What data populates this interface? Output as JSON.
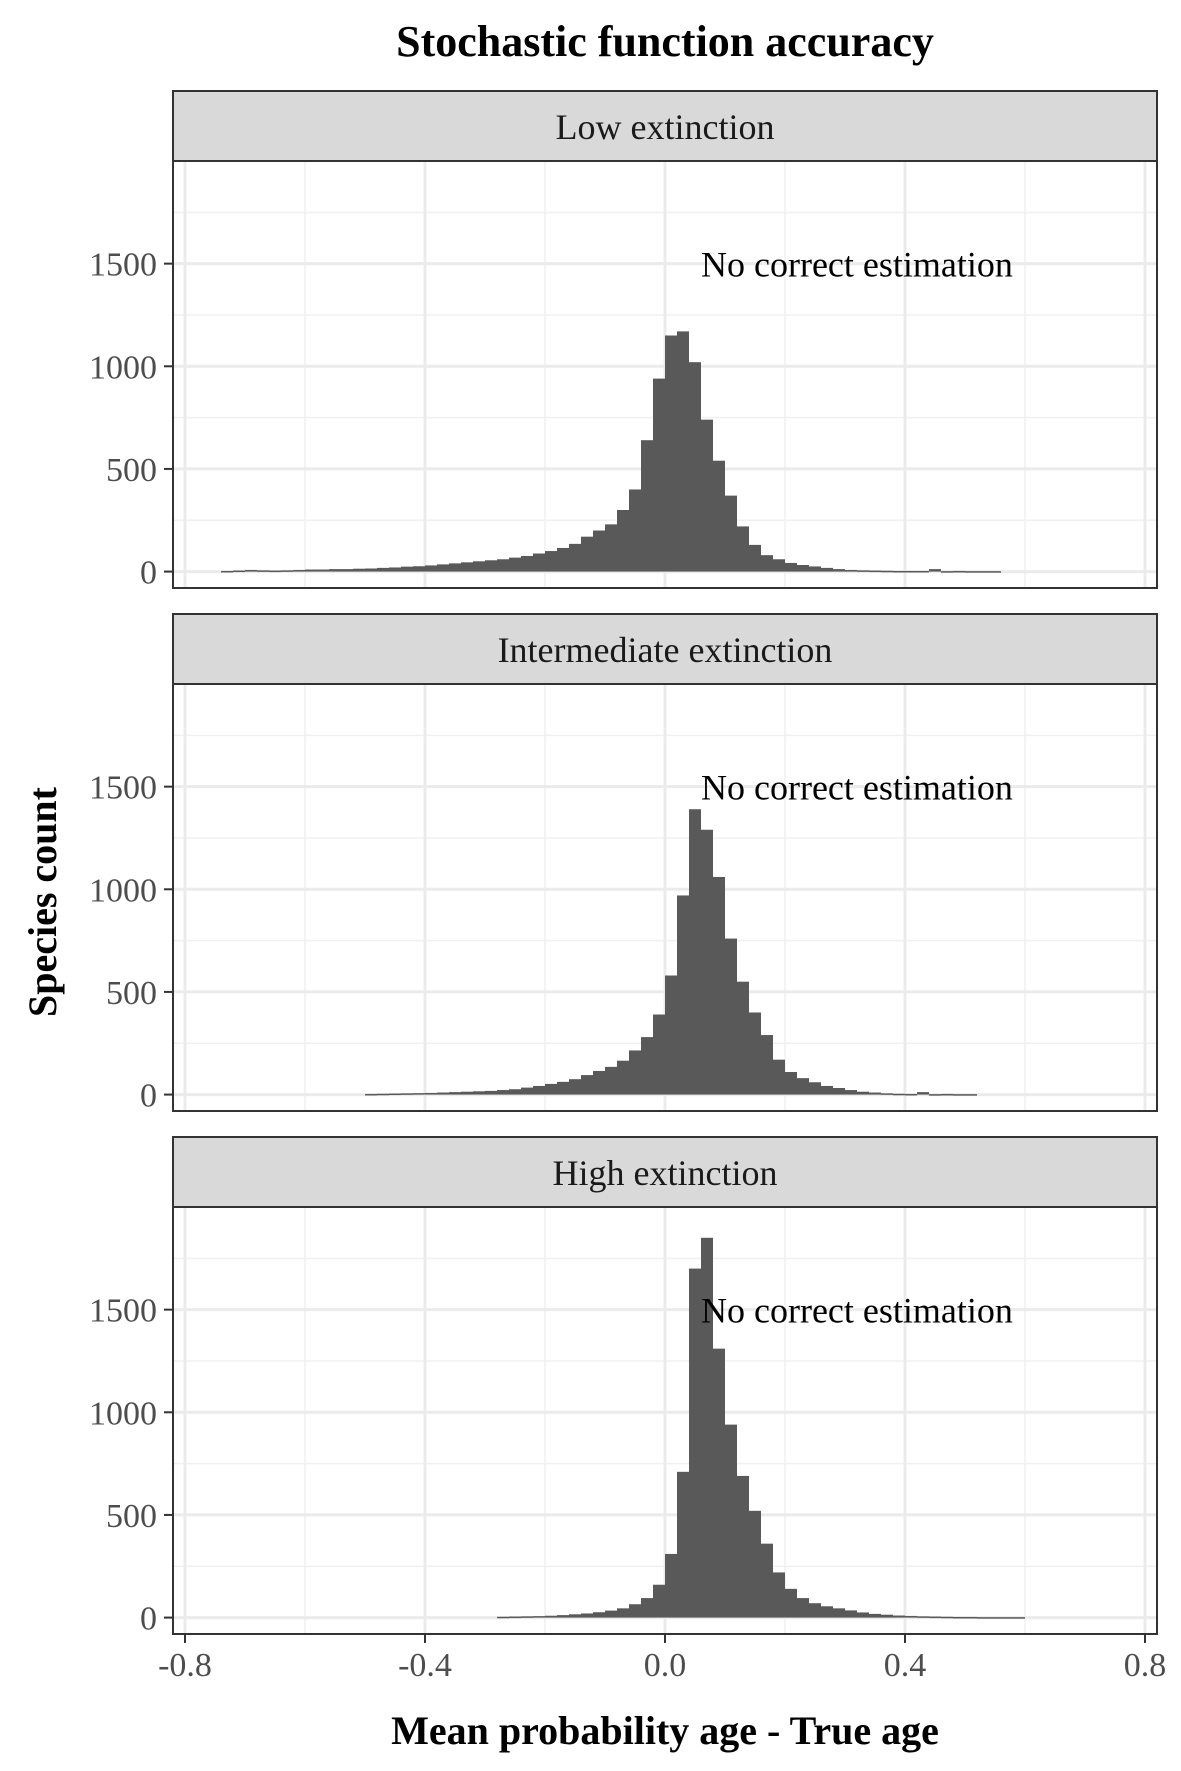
{
  "chart_data": {
    "type": "bar",
    "title": "Stochastic function accuracy",
    "xlabel": "Mean probability age - True age",
    "ylabel": "Species count",
    "xlim": [
      -0.82,
      0.82
    ],
    "ylim": [
      -80,
      2000
    ],
    "x_ticks": [
      {
        "value": -0.8,
        "label": "-0.8"
      },
      {
        "value": -0.4,
        "label": "-0.4"
      },
      {
        "value": 0.0,
        "label": "0.0"
      },
      {
        "value": 0.4,
        "label": "0.4"
      },
      {
        "value": 0.8,
        "label": "0.8"
      }
    ],
    "y_ticks": [
      {
        "value": 0,
        "label": "0"
      },
      {
        "value": 500,
        "label": "500"
      },
      {
        "value": 1000,
        "label": "1000"
      },
      {
        "value": 1500,
        "label": "1500"
      }
    ],
    "grid": true,
    "bar_color": "#595959",
    "bin_width": 0.02,
    "panels": [
      {
        "name": "Low extinction",
        "annotation": "No correct estimation",
        "bin_starts": [
          -0.74,
          -0.72,
          -0.7,
          -0.68,
          -0.66,
          -0.64,
          -0.62,
          -0.6,
          -0.58,
          -0.56,
          -0.54,
          -0.52,
          -0.5,
          -0.48,
          -0.46,
          -0.44,
          -0.42,
          -0.4,
          -0.38,
          -0.36,
          -0.34,
          -0.32,
          -0.3,
          -0.28,
          -0.26,
          -0.24,
          -0.22,
          -0.2,
          -0.18,
          -0.16,
          -0.14,
          -0.12,
          -0.1,
          -0.08,
          -0.06,
          -0.04,
          -0.02,
          0.0,
          0.02,
          0.04,
          0.06,
          0.08,
          0.1,
          0.12,
          0.14,
          0.16,
          0.18,
          0.2,
          0.22,
          0.24,
          0.26,
          0.28,
          0.3,
          0.32,
          0.34,
          0.36,
          0.38,
          0.4,
          0.42,
          0.44,
          0.46,
          0.48,
          0.5,
          0.52,
          0.54
        ],
        "counts": [
          3,
          5,
          8,
          6,
          5,
          6,
          8,
          10,
          10,
          12,
          12,
          14,
          15,
          18,
          20,
          24,
          26,
          30,
          35,
          40,
          45,
          50,
          55,
          60,
          68,
          76,
          88,
          100,
          115,
          135,
          170,
          200,
          230,
          300,
          400,
          640,
          940,
          1150,
          1170,
          1020,
          740,
          540,
          370,
          220,
          130,
          80,
          60,
          42,
          32,
          25,
          18,
          12,
          8,
          6,
          5,
          4,
          3,
          3,
          3,
          12,
          2,
          3,
          2,
          2,
          2
        ]
      },
      {
        "name": "Intermediate extinction",
        "annotation": "No correct estimation",
        "bin_starts": [
          -0.5,
          -0.48,
          -0.46,
          -0.44,
          -0.42,
          -0.4,
          -0.38,
          -0.36,
          -0.34,
          -0.32,
          -0.3,
          -0.28,
          -0.26,
          -0.24,
          -0.22,
          -0.2,
          -0.18,
          -0.16,
          -0.14,
          -0.12,
          -0.1,
          -0.08,
          -0.06,
          -0.04,
          -0.02,
          0.0,
          0.02,
          0.04,
          0.06,
          0.08,
          0.1,
          0.12,
          0.14,
          0.16,
          0.18,
          0.2,
          0.22,
          0.24,
          0.26,
          0.28,
          0.3,
          0.32,
          0.34,
          0.36,
          0.38,
          0.4,
          0.42,
          0.44,
          0.46,
          0.48,
          0.5
        ],
        "counts": [
          3,
          4,
          5,
          6,
          7,
          8,
          10,
          12,
          14,
          16,
          18,
          22,
          26,
          34,
          42,
          52,
          62,
          75,
          95,
          115,
          135,
          165,
          215,
          280,
          390,
          580,
          970,
          1390,
          1290,
          1060,
          760,
          550,
          400,
          290,
          170,
          110,
          80,
          60,
          42,
          32,
          22,
          14,
          10,
          6,
          4,
          3,
          12,
          2,
          3,
          2,
          2
        ]
      },
      {
        "name": "High extinction",
        "annotation": "No correct estimation",
        "bin_starts": [
          -0.28,
          -0.26,
          -0.24,
          -0.22,
          -0.2,
          -0.18,
          -0.16,
          -0.14,
          -0.12,
          -0.1,
          -0.08,
          -0.06,
          -0.04,
          -0.02,
          0.0,
          0.02,
          0.04,
          0.06,
          0.08,
          0.1,
          0.12,
          0.14,
          0.16,
          0.18,
          0.2,
          0.22,
          0.24,
          0.26,
          0.28,
          0.3,
          0.32,
          0.34,
          0.36,
          0.38,
          0.4,
          0.42,
          0.44,
          0.46,
          0.48,
          0.5,
          0.52,
          0.54,
          0.56,
          0.58
        ],
        "counts": [
          4,
          5,
          6,
          7,
          9,
          12,
          16,
          20,
          26,
          34,
          45,
          65,
          95,
          160,
          310,
          710,
          1700,
          1850,
          1310,
          940,
          690,
          520,
          360,
          220,
          140,
          95,
          70,
          55,
          45,
          35,
          25,
          18,
          14,
          10,
          8,
          6,
          5,
          4,
          3,
          3,
          2,
          2,
          2,
          2
        ]
      }
    ]
  }
}
